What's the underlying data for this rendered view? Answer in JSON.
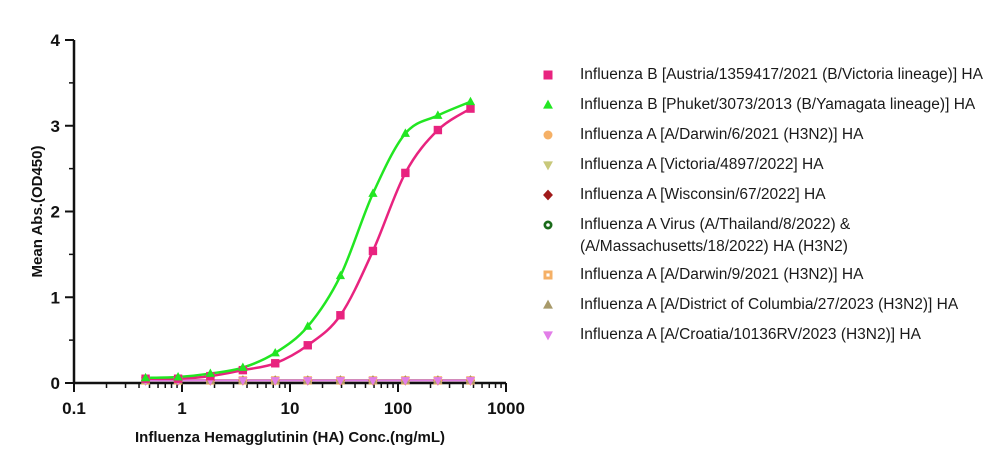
{
  "chart_data": {
    "type": "scatter",
    "xlabel": "Influenza Hemagglutinin (HA) Conc.(ng/mL)",
    "ylabel": "Mean Abs.(OD450)",
    "xscale": "log",
    "xlim": [
      0.1,
      1000
    ],
    "ylim": [
      0,
      4
    ],
    "xticks": [
      "0.1",
      "1",
      "10",
      "100",
      "1000"
    ],
    "yticks": [
      "0",
      "1",
      "2",
      "3",
      "4"
    ],
    "legend_position": "right",
    "grid": false,
    "series": [
      {
        "name": "Influenza B [Austria/1359417/2021 (B/Victoria lineage)] HA",
        "color": "#e8237f",
        "marker": "square",
        "fit": true,
        "x": [
          0.46,
          0.92,
          1.83,
          3.66,
          7.3,
          14.6,
          29.3,
          58.6,
          117,
          234,
          469
        ],
        "y": [
          0.05,
          0.05,
          0.08,
          0.15,
          0.23,
          0.44,
          0.79,
          1.54,
          2.45,
          2.95,
          3.2
        ]
      },
      {
        "name": "Influenza B [Phuket/3073/2013 (B/Yamagata lineage)] HA",
        "color": "#22e622",
        "marker": "triangle",
        "fit": true,
        "x": [
          0.46,
          0.92,
          1.83,
          3.66,
          7.3,
          14.6,
          29.3,
          58.6,
          117,
          234,
          469
        ],
        "y": [
          0.06,
          0.07,
          0.11,
          0.18,
          0.35,
          0.66,
          1.25,
          2.21,
          2.91,
          3.12,
          3.28
        ]
      },
      {
        "name": "Influenza A [A/Darwin/6/2021 (H3N2)] HA",
        "color": "#f5b066",
        "marker": "circle",
        "fit": false,
        "x": [
          0.46,
          0.92,
          1.83,
          3.66,
          7.3,
          14.6,
          29.3,
          58.6,
          117,
          234,
          469
        ],
        "y": [
          0.03,
          0.03,
          0.03,
          0.03,
          0.03,
          0.03,
          0.03,
          0.03,
          0.03,
          0.03,
          0.03
        ]
      },
      {
        "name": "Influenza A [Victoria/4897/2022] HA",
        "color": "#c8c87a",
        "marker": "triangle-down",
        "fit": false,
        "x": [
          0.46,
          0.92,
          1.83,
          3.66,
          7.3,
          14.6,
          29.3,
          58.6,
          117,
          234,
          469
        ],
        "y": [
          0.03,
          0.03,
          0.03,
          0.03,
          0.03,
          0.03,
          0.03,
          0.03,
          0.03,
          0.03,
          0.03
        ]
      },
      {
        "name": "Influenza A [Wisconsin/67/2022] HA",
        "color": "#a01a1a",
        "marker": "diamond",
        "fit": false,
        "x": [
          0.46,
          0.92,
          1.83,
          3.66,
          7.3,
          14.6,
          29.3,
          58.6,
          117,
          234,
          469
        ],
        "y": [
          0.03,
          0.03,
          0.03,
          0.03,
          0.03,
          0.03,
          0.03,
          0.03,
          0.03,
          0.03,
          0.03
        ]
      },
      {
        "name": "Influenza A Virus (A/Thailand/8/2022) & (A/Massachusetts/18/2022) HA (H3N2)",
        "color": "#1a6b1a",
        "marker": "ring",
        "fit": false,
        "x": [
          0.46,
          0.92,
          1.83,
          3.66,
          7.3,
          14.6,
          29.3,
          58.6,
          117,
          234,
          469
        ],
        "y": [
          0.03,
          0.03,
          0.03,
          0.03,
          0.03,
          0.03,
          0.03,
          0.03,
          0.03,
          0.03,
          0.03
        ]
      },
      {
        "name": "Influenza A [A/Darwin/9/2021 (H3N2)] HA",
        "color": "#f5b066",
        "marker": "square-dot",
        "fit": false,
        "x": [
          0.46,
          0.92,
          1.83,
          3.66,
          7.3,
          14.6,
          29.3,
          58.6,
          117,
          234,
          469
        ],
        "y": [
          0.03,
          0.03,
          0.03,
          0.03,
          0.03,
          0.03,
          0.03,
          0.03,
          0.03,
          0.03,
          0.03
        ]
      },
      {
        "name": "Influenza A [A/District of Columbia/27/2023 (H3N2)] HA",
        "color": "#a89a6a",
        "marker": "triangle",
        "fit": false,
        "x": [
          0.46,
          0.92,
          1.83,
          3.66,
          7.3,
          14.6,
          29.3,
          58.6,
          117,
          234,
          469
        ],
        "y": [
          0.03,
          0.03,
          0.03,
          0.03,
          0.03,
          0.03,
          0.03,
          0.03,
          0.03,
          0.03,
          0.03
        ]
      },
      {
        "name": "Influenza A [A/Croatia/10136RV/2023 (H3N2)] HA",
        "color": "#e27ee8",
        "marker": "triangle-down",
        "fit": false,
        "x": [
          0.46,
          0.92,
          1.83,
          3.66,
          7.3,
          14.6,
          29.3,
          58.6,
          117,
          234,
          469
        ],
        "y": [
          0.03,
          0.03,
          0.03,
          0.03,
          0.03,
          0.03,
          0.03,
          0.03,
          0.03,
          0.03,
          0.03
        ]
      }
    ]
  }
}
